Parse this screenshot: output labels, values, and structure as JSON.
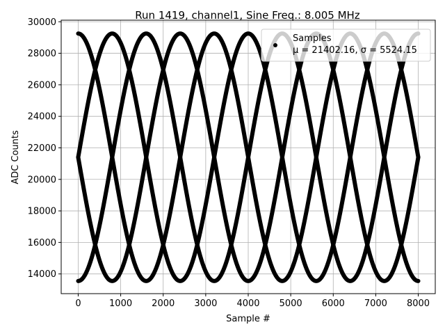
{
  "chart_data": {
    "type": "scatter",
    "title": "Run 1419, channel1, Sine Freq.: 8.005 MHz",
    "xlabel": "Sample #",
    "ylabel": "ADC Counts",
    "xlim": [
      -400,
      8400
    ],
    "ylim": [
      12750,
      30100
    ],
    "xticks": [
      0,
      1000,
      2000,
      3000,
      4000,
      5000,
      6000,
      7000,
      8000
    ],
    "yticks": [
      14000,
      16000,
      18000,
      20000,
      22000,
      24000,
      26000,
      28000,
      30000
    ],
    "grid": true,
    "legend": {
      "placement": "top-right",
      "entries": [
        "Samples",
        "μ = 21402.16, σ = 5524.15"
      ]
    },
    "marker_color": "#000000",
    "series": [
      {
        "mean": 21402.16,
        "amplitude": 7850,
        "period_samples": 3200,
        "phases_deg": [
          90,
          180,
          270,
          360
        ],
        "x_range": [
          0,
          8000
        ]
      }
    ]
  }
}
